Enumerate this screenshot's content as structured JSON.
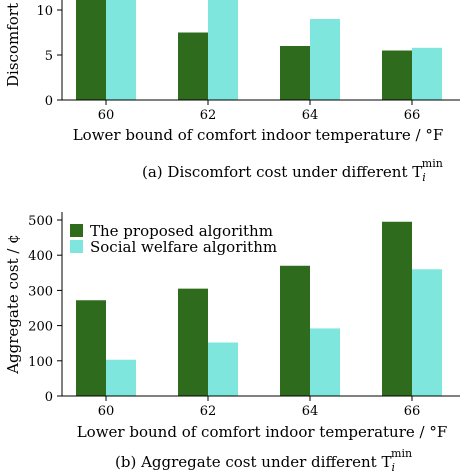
{
  "chart_data": [
    {
      "type": "bar",
      "categories": [
        "60",
        "62",
        "64",
        "66"
      ],
      "series": [
        {
          "name": "The proposed algorithm",
          "values": [
            11.5,
            7.5,
            6.0,
            5.5
          ]
        },
        {
          "name": "Social welfare algorithm",
          "values": [
            14.2,
            13.0,
            9.0,
            5.8
          ]
        }
      ],
      "ylim": [
        0,
        15
      ],
      "yticks": [
        "0",
        "5",
        "10"
      ],
      "xlabel": "Lower bound of comfort indoor temperature / °F",
      "ylabel": "Discomfort",
      "caption_text": "(a) Discomfort cost under different T",
      "caption_sub": "i",
      "caption_sup": "min",
      "legend": "none",
      "grid": false
    },
    {
      "type": "bar",
      "categories": [
        "60",
        "62",
        "64",
        "66"
      ],
      "series": [
        {
          "name": "The proposed algorithm",
          "values": [
            272,
            305,
            370,
            495
          ]
        },
        {
          "name": "Social welfare algorithm",
          "values": [
            103,
            152,
            192,
            360
          ]
        }
      ],
      "ylim": [
        0,
        500
      ],
      "yticks": [
        "0",
        "100",
        "200",
        "300",
        "400",
        "500"
      ],
      "xlabel": "Lower bound of comfort indoor temperature / °F",
      "ylabel": "Aggregate cost / ¢",
      "caption_text": "(b) Aggregate cost under different T",
      "caption_sub": "i",
      "caption_sup": "min",
      "legend": "top-left",
      "grid": false
    }
  ],
  "colors": {
    "proposed": "#2f6b1d",
    "social": "#7fe6dd",
    "axis": "#000000"
  }
}
